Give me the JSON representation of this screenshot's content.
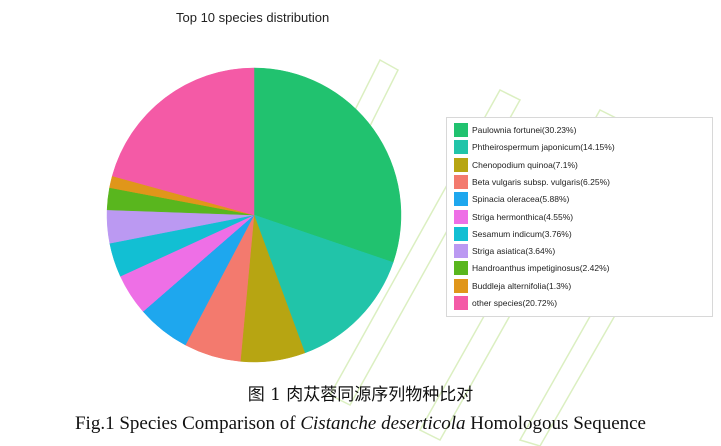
{
  "chart_data": {
    "type": "pie",
    "title": "Top 10 species distribution",
    "legend_position": "right",
    "slices": [
      {
        "label": "Paulownia fortunei(30.23%)",
        "value": 30.23,
        "color": "#21c26f"
      },
      {
        "label": "Phtheirospermum japonicum(14.15%)",
        "value": 14.15,
        "color": "#21c4a9"
      },
      {
        "label": "Chenopodium quinoa(7.1%)",
        "value": 7.1,
        "color": "#b7a512"
      },
      {
        "label": "Beta vulgaris subsp. vulgaris(6.25%)",
        "value": 6.25,
        "color": "#f37a6e"
      },
      {
        "label": "Spinacia oleracea(5.88%)",
        "value": 5.88,
        "color": "#1ea7ee"
      },
      {
        "label": "Striga hermonthica(4.55%)",
        "value": 4.55,
        "color": "#ee6fe6"
      },
      {
        "label": "Sesamum indicum(3.76%)",
        "value": 3.76,
        "color": "#12bfd3"
      },
      {
        "label": "Striga asiatica(3.64%)",
        "value": 3.64,
        "color": "#bb99f2"
      },
      {
        "label": "Handroanthus impetiginosus(2.42%)",
        "value": 2.42,
        "color": "#59b61e"
      },
      {
        "label": "Buddleja alternifolia(1.3%)",
        "value": 1.3,
        "color": "#e0961a"
      },
      {
        "label": "other species(20.72%)",
        "value": 20.72,
        "color": "#f45aa6"
      }
    ]
  },
  "captions": {
    "cn": "图 1  肉苁蓉同源序列物种比对",
    "en_before": "Fig.1 Species Comparison of ",
    "en_italic": "Cistanche deserticola",
    "en_after": " Homologous Sequence"
  }
}
